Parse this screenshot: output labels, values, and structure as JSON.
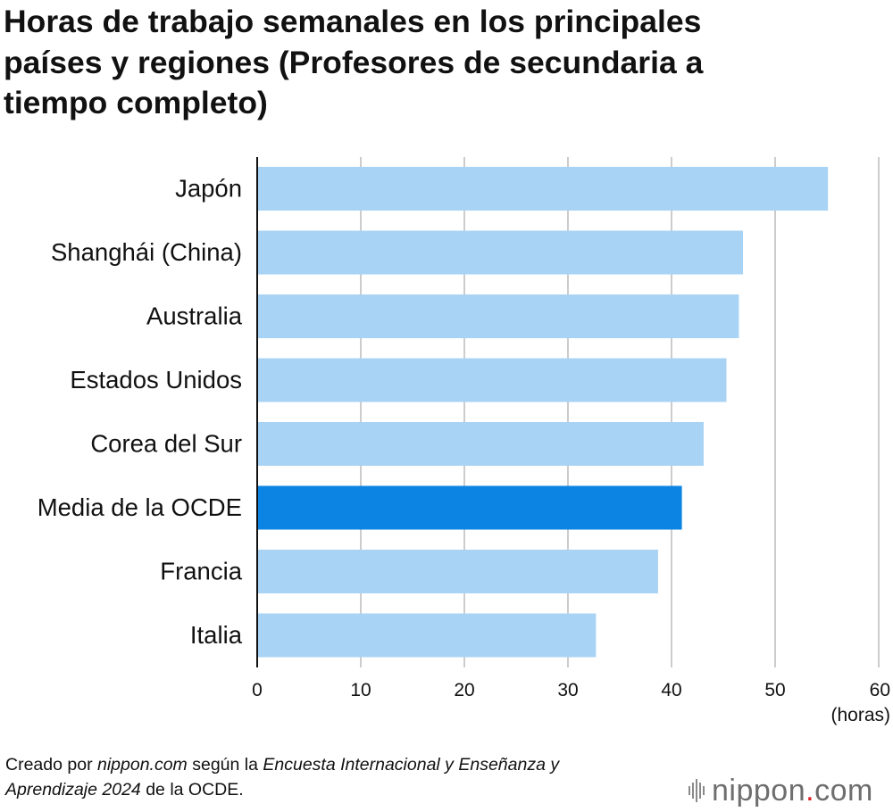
{
  "title": "Horas de trabajo semanales en los principales países y regiones (Profesores de secundaria a tiempo completo)",
  "chart_data": {
    "type": "bar",
    "orientation": "horizontal",
    "title": "Horas de trabajo semanales en los principales países y regiones (Profesores de secundaria a tiempo completo)",
    "categories": [
      "Japón",
      "Shanghái (China)",
      "Australia",
      "Estados Unidos",
      "Corea del Sur",
      "Media de la OCDE",
      "Francia",
      "Italia"
    ],
    "values": [
      55.1,
      46.9,
      46.5,
      45.3,
      43.1,
      41.0,
      38.7,
      32.7
    ],
    "highlight": "Media de la OCDE",
    "xlim": [
      0,
      60
    ],
    "xticks": [
      "0",
      "10",
      "20",
      "30",
      "40",
      "50",
      "60"
    ],
    "xlabel": "(horas)",
    "ylabel": "",
    "grid": true,
    "colors": {
      "bar": "#a8d3f5",
      "highlight": "#0c84e4",
      "grid": "#cccccc",
      "axis": "#111111"
    }
  },
  "footer": {
    "prefix": "Creado por ",
    "site": "nippon.com",
    "middle": " según la ",
    "survey": "Encuesta Internacional y Enseñanza y Aprendizaje 2024",
    "suffix": " de la OCDE."
  },
  "logo": {
    "name": "nippon",
    "dot": ".",
    "tld": "com",
    "dot_color": "#e11b22"
  }
}
